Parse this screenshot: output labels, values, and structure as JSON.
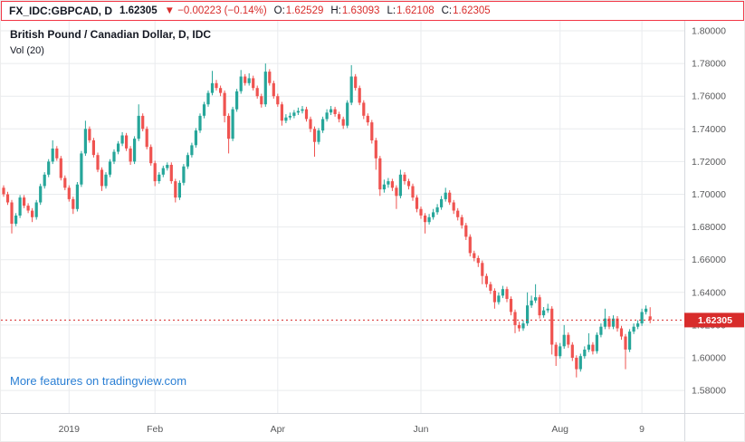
{
  "header": {
    "symbol": "FX_IDC:GBPCAD, D",
    "last_price": "1.62305",
    "direction_arrow": "▼",
    "change": "−0.00223 (−0.14%)",
    "ohlc": [
      {
        "label": "O:",
        "value": "1.62529"
      },
      {
        "label": "H:",
        "value": "1.63093"
      },
      {
        "label": "L:",
        "value": "1.62108"
      },
      {
        "label": "C:",
        "value": "1.62305"
      }
    ]
  },
  "promo": {
    "text": "More features on tradingview.com"
  },
  "colors": {
    "up": "#26a69a",
    "down": "#ef5350",
    "red": "#d82c2b",
    "grid": "#e9ebee",
    "axis_text": "#58595b",
    "title_text": "#131722",
    "link": "#2a7fd4",
    "header_border": "#f23645",
    "separator": "#d6d9de"
  },
  "chart_data": {
    "type": "candlestick",
    "title": "British Pound / Canadian Dollar, D, IDC",
    "indicator": "Vol (20)",
    "symbol": "FX_IDC:GBPCAD",
    "timeframe": "D",
    "y_range": [
      1.5662,
      1.8061
    ],
    "price_line": 1.62305,
    "price_label": "1.62305",
    "y_ticks": [
      {
        "label": "1.80000",
        "value": 1.8
      },
      {
        "label": "1.78000",
        "value": 1.78
      },
      {
        "label": "1.76000",
        "value": 1.76
      },
      {
        "label": "1.74000",
        "value": 1.74
      },
      {
        "label": "1.72000",
        "value": 1.72
      },
      {
        "label": "1.70000",
        "value": 1.7
      },
      {
        "label": "1.68000",
        "value": 1.68
      },
      {
        "label": "1.66000",
        "value": 1.66
      },
      {
        "label": "1.64000",
        "value": 1.64
      },
      {
        "label": "1.62000",
        "value": 1.62
      },
      {
        "label": "1.60000",
        "value": 1.6
      },
      {
        "label": "1.58000",
        "value": 1.58
      }
    ],
    "x_ticks": [
      {
        "label": "2019",
        "index": 16
      },
      {
        "label": "Feb",
        "index": 37
      },
      {
        "label": "Apr",
        "index": 67
      },
      {
        "label": "Jun",
        "index": 102
      },
      {
        "label": "Aug",
        "index": 136
      },
      {
        "label": "9",
        "index": 156
      }
    ],
    "candles": [
      [
        1.704,
        1.7055,
        1.6985,
        1.7
      ],
      [
        1.7,
        1.7015,
        1.6935,
        1.695
      ],
      [
        1.695,
        1.6965,
        1.676,
        1.682
      ],
      [
        1.682,
        1.6885,
        1.6805,
        1.687
      ],
      [
        1.687,
        1.6995,
        1.6855,
        1.698
      ],
      [
        1.698,
        1.6995,
        1.6915,
        1.693
      ],
      [
        1.693,
        1.6945,
        1.6885,
        1.69
      ],
      [
        1.69,
        1.6915,
        1.683,
        1.686
      ],
      [
        1.686,
        1.6965,
        1.6845,
        1.695
      ],
      [
        1.695,
        1.7065,
        1.6935,
        1.705
      ],
      [
        1.705,
        1.7135,
        1.7035,
        1.712
      ],
      [
        1.712,
        1.7215,
        1.7105,
        1.72
      ],
      [
        1.72,
        1.733,
        1.7185,
        1.728
      ],
      [
        1.728,
        1.7295,
        1.7205,
        1.722
      ],
      [
        1.722,
        1.7235,
        1.7085,
        1.71
      ],
      [
        1.71,
        1.7115,
        1.7025,
        1.704
      ],
      [
        1.704,
        1.7055,
        1.6955,
        1.697
      ],
      [
        1.697,
        1.6985,
        1.688,
        1.691
      ],
      [
        1.691,
        1.7075,
        1.6895,
        1.706
      ],
      [
        1.706,
        1.7265,
        1.7045,
        1.725
      ],
      [
        1.725,
        1.745,
        1.7235,
        1.74
      ],
      [
        1.74,
        1.7415,
        1.7315,
        1.733
      ],
      [
        1.733,
        1.7345,
        1.7225,
        1.724
      ],
      [
        1.724,
        1.7255,
        1.7135,
        1.715
      ],
      [
        1.715,
        1.7165,
        1.702,
        1.705
      ],
      [
        1.705,
        1.7135,
        1.7035,
        1.712
      ],
      [
        1.712,
        1.7215,
        1.7105,
        1.72
      ],
      [
        1.72,
        1.7275,
        1.7185,
        1.726
      ],
      [
        1.726,
        1.7325,
        1.7245,
        1.731
      ],
      [
        1.731,
        1.738,
        1.7295,
        1.736
      ],
      [
        1.736,
        1.7375,
        1.7265,
        1.728
      ],
      [
        1.728,
        1.7295,
        1.718,
        1.72
      ],
      [
        1.72,
        1.7355,
        1.7185,
        1.734
      ],
      [
        1.734,
        1.755,
        1.7325,
        1.748
      ],
      [
        1.748,
        1.7495,
        1.7385,
        1.74
      ],
      [
        1.74,
        1.7415,
        1.7275,
        1.729
      ],
      [
        1.729,
        1.7305,
        1.7175,
        1.719
      ],
      [
        1.719,
        1.7205,
        1.705,
        1.708
      ],
      [
        1.708,
        1.7135,
        1.7065,
        1.712
      ],
      [
        1.712,
        1.7175,
        1.7105,
        1.716
      ],
      [
        1.716,
        1.7195,
        1.7145,
        1.718
      ],
      [
        1.718,
        1.7195,
        1.7065,
        1.708
      ],
      [
        1.708,
        1.7095,
        1.695,
        1.698
      ],
      [
        1.698,
        1.7085,
        1.6965,
        1.707
      ],
      [
        1.707,
        1.7185,
        1.7055,
        1.717
      ],
      [
        1.717,
        1.7255,
        1.7155,
        1.724
      ],
      [
        1.724,
        1.7315,
        1.7225,
        1.73
      ],
      [
        1.73,
        1.7405,
        1.7285,
        1.739
      ],
      [
        1.739,
        1.7495,
        1.7375,
        1.748
      ],
      [
        1.748,
        1.7565,
        1.7465,
        1.755
      ],
      [
        1.755,
        1.7635,
        1.7535,
        1.762
      ],
      [
        1.762,
        1.7755,
        1.7605,
        1.768
      ],
      [
        1.768,
        1.77,
        1.7635,
        1.765
      ],
      [
        1.765,
        1.7665,
        1.76,
        1.762
      ],
      [
        1.762,
        1.7635,
        1.744,
        1.748
      ],
      [
        1.748,
        1.7495,
        1.725,
        1.734
      ],
      [
        1.734,
        1.7535,
        1.7325,
        1.752
      ],
      [
        1.752,
        1.7645,
        1.7505,
        1.763
      ],
      [
        1.763,
        1.776,
        1.7615,
        1.772
      ],
      [
        1.772,
        1.7735,
        1.7665,
        1.768
      ],
      [
        1.768,
        1.774,
        1.7665,
        1.771
      ],
      [
        1.771,
        1.7725,
        1.7635,
        1.765
      ],
      [
        1.765,
        1.7665,
        1.7585,
        1.76
      ],
      [
        1.76,
        1.7615,
        1.753,
        1.755
      ],
      [
        1.755,
        1.78,
        1.7535,
        1.775
      ],
      [
        1.775,
        1.7765,
        1.7665,
        1.768
      ],
      [
        1.768,
        1.7695,
        1.7585,
        1.76
      ],
      [
        1.76,
        1.7615,
        1.7535,
        1.755
      ],
      [
        1.755,
        1.7565,
        1.742,
        1.745
      ],
      [
        1.745,
        1.749,
        1.7435,
        1.747
      ],
      [
        1.747,
        1.75,
        1.7455,
        1.748
      ],
      [
        1.748,
        1.7515,
        1.7465,
        1.75
      ],
      [
        1.75,
        1.753,
        1.7485,
        1.751
      ],
      [
        1.751,
        1.754,
        1.7495,
        1.752
      ],
      [
        1.752,
        1.7535,
        1.7445,
        1.746
      ],
      [
        1.746,
        1.7475,
        1.738,
        1.74
      ],
      [
        1.74,
        1.7415,
        1.723,
        1.732
      ],
      [
        1.732,
        1.7405,
        1.7305,
        1.739
      ],
      [
        1.739,
        1.7475,
        1.7375,
        1.746
      ],
      [
        1.746,
        1.752,
        1.7445,
        1.75
      ],
      [
        1.75,
        1.754,
        1.7485,
        1.752
      ],
      [
        1.752,
        1.7535,
        1.7475,
        1.749
      ],
      [
        1.749,
        1.7505,
        1.744,
        1.746
      ],
      [
        1.746,
        1.7475,
        1.74,
        1.742
      ],
      [
        1.742,
        1.7575,
        1.7405,
        1.756
      ],
      [
        1.756,
        1.779,
        1.7545,
        1.772
      ],
      [
        1.772,
        1.7735,
        1.7635,
        1.765
      ],
      [
        1.765,
        1.7665,
        1.7545,
        1.756
      ],
      [
        1.756,
        1.7575,
        1.746,
        1.748
      ],
      [
        1.748,
        1.7495,
        1.742,
        1.744
      ],
      [
        1.744,
        1.7455,
        1.731,
        1.733
      ],
      [
        1.733,
        1.7345,
        1.715,
        1.722
      ],
      [
        1.722,
        1.7235,
        1.699,
        1.703
      ],
      [
        1.703,
        1.709,
        1.701,
        1.706
      ],
      [
        1.706,
        1.71,
        1.704,
        1.708
      ],
      [
        1.708,
        1.7095,
        1.702,
        1.704
      ],
      [
        1.704,
        1.7055,
        1.691,
        1.699
      ],
      [
        1.699,
        1.715,
        1.6975,
        1.712
      ],
      [
        1.712,
        1.7135,
        1.706,
        1.708
      ],
      [
        1.708,
        1.7095,
        1.703,
        1.705
      ],
      [
        1.705,
        1.7065,
        1.696,
        1.698
      ],
      [
        1.698,
        1.6995,
        1.689,
        1.691
      ],
      [
        1.691,
        1.6925,
        1.685,
        1.687
      ],
      [
        1.687,
        1.6885,
        1.676,
        1.683
      ],
      [
        1.683,
        1.688,
        1.6815,
        1.686
      ],
      [
        1.686,
        1.691,
        1.6845,
        1.689
      ],
      [
        1.689,
        1.694,
        1.6875,
        1.692
      ],
      [
        1.692,
        1.699,
        1.6905,
        1.697
      ],
      [
        1.697,
        1.704,
        1.6955,
        1.701
      ],
      [
        1.701,
        1.7025,
        1.6935,
        1.695
      ],
      [
        1.695,
        1.6965,
        1.688,
        1.69
      ],
      [
        1.69,
        1.6915,
        1.684,
        1.686
      ],
      [
        1.686,
        1.6875,
        1.679,
        1.681
      ],
      [
        1.681,
        1.6825,
        1.672,
        1.674
      ],
      [
        1.674,
        1.6755,
        1.662,
        1.664
      ],
      [
        1.664,
        1.6655,
        1.659,
        1.661
      ],
      [
        1.661,
        1.6625,
        1.6555,
        1.658
      ],
      [
        1.658,
        1.6595,
        1.645,
        1.65
      ],
      [
        1.65,
        1.6515,
        1.643,
        1.645
      ],
      [
        1.645,
        1.6465,
        1.639,
        1.641
      ],
      [
        1.641,
        1.6425,
        1.63,
        1.634
      ],
      [
        1.634,
        1.64,
        1.6325,
        1.638
      ],
      [
        1.638,
        1.644,
        1.6365,
        1.642
      ],
      [
        1.642,
        1.6435,
        1.634,
        1.636
      ],
      [
        1.636,
        1.6375,
        1.626,
        1.628
      ],
      [
        1.628,
        1.6295,
        1.615,
        1.62
      ],
      [
        1.62,
        1.622,
        1.616,
        1.618
      ],
      [
        1.618,
        1.623,
        1.6165,
        1.621
      ],
      [
        1.621,
        1.64,
        1.6195,
        1.632
      ],
      [
        1.632,
        1.638,
        1.6305,
        1.635
      ],
      [
        1.635,
        1.645,
        1.6335,
        1.637
      ],
      [
        1.637,
        1.6385,
        1.624,
        1.626
      ],
      [
        1.626,
        1.631,
        1.6245,
        1.629
      ],
      [
        1.629,
        1.633,
        1.6275,
        1.63
      ],
      [
        1.63,
        1.6315,
        1.602,
        1.608
      ],
      [
        1.608,
        1.6095,
        1.595,
        1.601
      ],
      [
        1.601,
        1.609,
        1.5995,
        1.607
      ],
      [
        1.607,
        1.62,
        1.6055,
        1.614
      ],
      [
        1.614,
        1.6155,
        1.606,
        1.608
      ],
      [
        1.608,
        1.6095,
        1.598,
        1.6
      ],
      [
        1.6,
        1.6015,
        1.588,
        1.593
      ],
      [
        1.593,
        1.6025,
        1.5915,
        1.601
      ],
      [
        1.601,
        1.607,
        1.5995,
        1.605
      ],
      [
        1.605,
        1.615,
        1.6035,
        1.608
      ],
      [
        1.608,
        1.6095,
        1.602,
        1.604
      ],
      [
        1.604,
        1.6155,
        1.6025,
        1.614
      ],
      [
        1.614,
        1.621,
        1.6125,
        1.619
      ],
      [
        1.619,
        1.63,
        1.6175,
        1.624
      ],
      [
        1.624,
        1.6255,
        1.6175,
        1.619
      ],
      [
        1.619,
        1.626,
        1.6175,
        1.624
      ],
      [
        1.624,
        1.6255,
        1.616,
        1.618
      ],
      [
        1.618,
        1.6195,
        1.611,
        1.613
      ],
      [
        1.613,
        1.6145,
        1.593,
        1.605
      ],
      [
        1.605,
        1.6175,
        1.6035,
        1.616
      ],
      [
        1.616,
        1.621,
        1.6145,
        1.619
      ],
      [
        1.619,
        1.623,
        1.6175,
        1.621
      ],
      [
        1.621,
        1.63,
        1.6195,
        1.628
      ],
      [
        1.628,
        1.632,
        1.6265,
        1.63
      ],
      [
        1.62529,
        1.63093,
        1.62108,
        1.62305
      ]
    ]
  }
}
